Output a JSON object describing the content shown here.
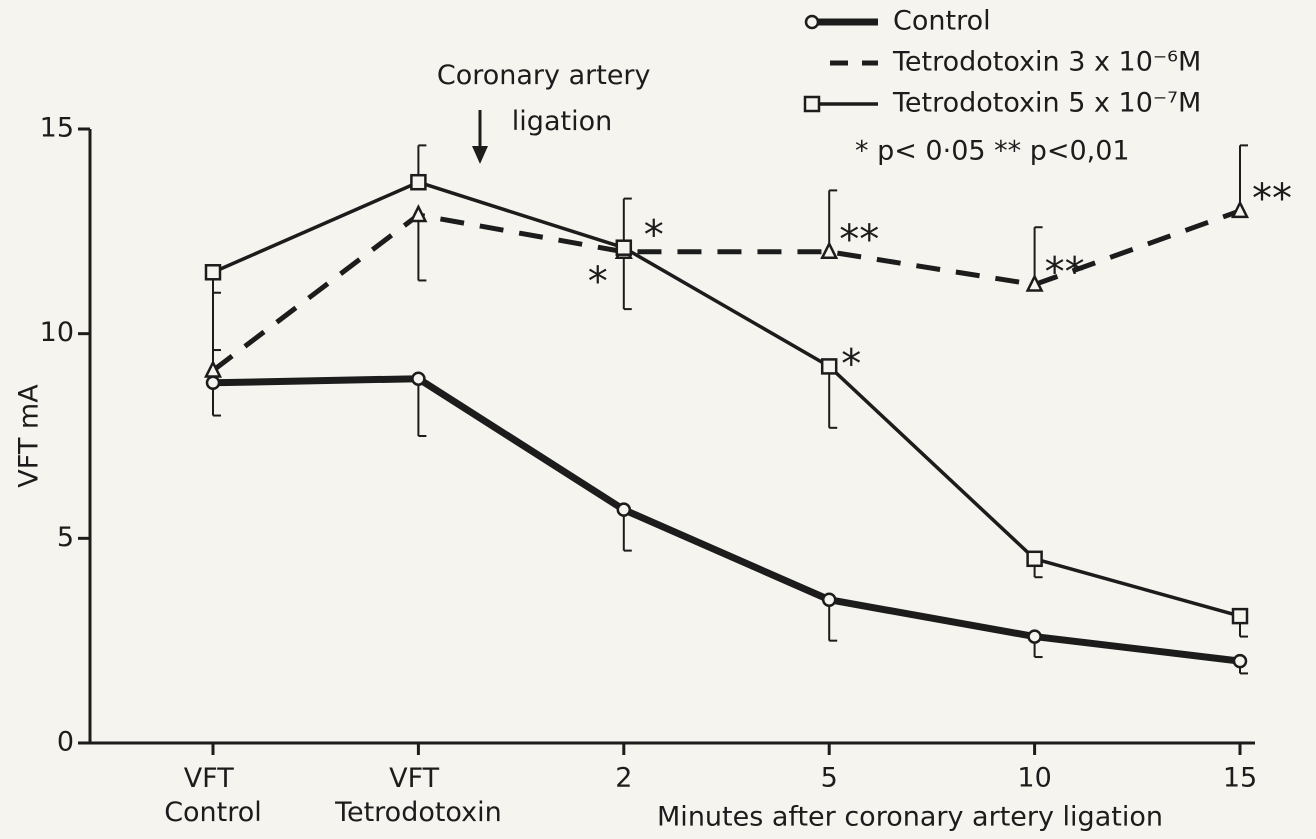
{
  "chart_data": {
    "type": "line",
    "ylabel": "VFT mA",
    "xlabel": "Minutes after coronary artery ligation",
    "categories": [
      "VFT Control",
      "VFT Tetrodotoxin",
      "2",
      "5",
      "10",
      "15"
    ],
    "ylim": [
      0,
      15
    ],
    "yticks": [
      0,
      5,
      10,
      15
    ],
    "series": [
      {
        "name": "Control",
        "color": "#1c1c1c",
        "style": "solid",
        "marker": "circle",
        "values": [
          8.8,
          8.9,
          5.7,
          3.5,
          2.6,
          2.0
        ],
        "error_up": [
          null,
          null,
          null,
          null,
          null,
          null
        ],
        "error_down": [
          0.8,
          1.4,
          1.0,
          1.0,
          0.5,
          0.3
        ]
      },
      {
        "name": "Tetrodotoxin 3 x 10⁻⁶M",
        "color": "#1c1c1c",
        "style": "dashed",
        "marker": "triangle",
        "values": [
          9.1,
          12.9,
          12.0,
          12.0,
          11.2,
          13.0
        ],
        "error_up": [
          1.9,
          null,
          null,
          1.5,
          1.4,
          1.6
        ],
        "error_down": [
          null,
          1.6,
          1.4,
          null,
          null,
          null
        ]
      },
      {
        "name": "Tetrodotoxin 5 x 10⁻⁷M",
        "color": "#1c1c1c",
        "style": "thin",
        "marker": "square",
        "values": [
          11.5,
          13.7,
          12.1,
          9.2,
          4.5,
          3.1
        ],
        "error_up": [
          null,
          0.9,
          1.2,
          null,
          null,
          null
        ],
        "error_down": [
          1.9,
          null,
          null,
          1.5,
          0.45,
          0.5
        ]
      }
    ],
    "annotations": [
      {
        "text": "*",
        "series": 2,
        "point": 2
      },
      {
        "text": "*",
        "series": 1,
        "point": 2
      },
      {
        "text": "**",
        "series": 1,
        "point": 3
      },
      {
        "text": "**",
        "series": 1,
        "point": 4
      },
      {
        "text": "**",
        "series": 1,
        "point": 5
      },
      {
        "text": "*",
        "series": 2,
        "point": 3
      }
    ],
    "event_label": "Coronary artery ligation",
    "legend_note": "* p< 0·05  ** p<0,01"
  }
}
